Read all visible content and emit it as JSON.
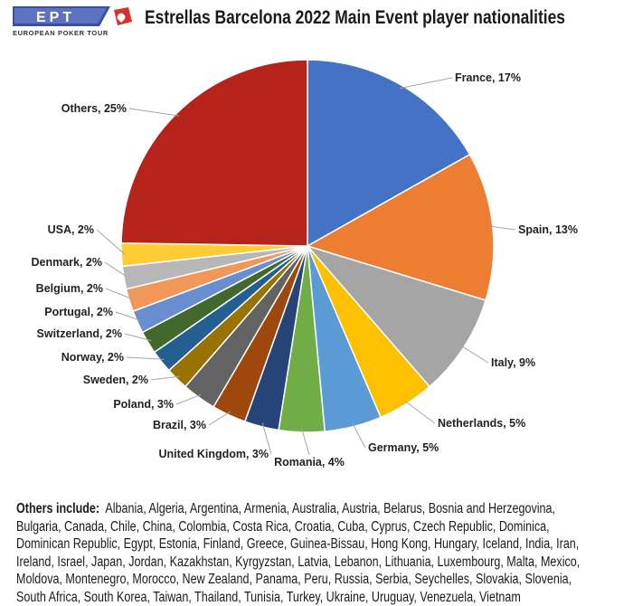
{
  "logo": {
    "text": "EPT",
    "subtitle": "EUROPEAN POKER TOUR"
  },
  "chart_data": {
    "type": "pie",
    "title": "Estrellas Barcelona 2022 Main Event player nationalities",
    "unit": "%",
    "slices": [
      {
        "label": "France",
        "value": 17,
        "color": "#4472C4"
      },
      {
        "label": "Spain",
        "value": 13,
        "color": "#ED7D31"
      },
      {
        "label": "Italy",
        "value": 9,
        "color": "#A5A5A5"
      },
      {
        "label": "Netherlands",
        "value": 5,
        "color": "#FFC000"
      },
      {
        "label": "Germany",
        "value": 5,
        "color": "#5B9BD5"
      },
      {
        "label": "Romania",
        "value": 4,
        "color": "#70AD47"
      },
      {
        "label": "United Kingdom",
        "value": 3,
        "color": "#264478"
      },
      {
        "label": "Brazil",
        "value": 3,
        "color": "#9E480E"
      },
      {
        "label": "Poland",
        "value": 3,
        "color": "#636363"
      },
      {
        "label": "Sweden",
        "value": 2,
        "color": "#997300"
      },
      {
        "label": "Norway",
        "value": 2,
        "color": "#255E91"
      },
      {
        "label": "Switzerland",
        "value": 2,
        "color": "#43682B"
      },
      {
        "label": "Portugal",
        "value": 2,
        "color": "#698ED0"
      },
      {
        "label": "Belgium",
        "value": 2,
        "color": "#F1975A"
      },
      {
        "label": "Denmark",
        "value": 2,
        "color": "#B7B7B7"
      },
      {
        "label": "USA",
        "value": 2,
        "color": "#FFCD33"
      },
      {
        "label": "Others",
        "value": 25,
        "color": "#B5231A"
      }
    ]
  },
  "footnote": {
    "label": "Others include:",
    "lines": [
      "Albania, Algeria, Argentina, Armenia, Australia, Austria, Belarus, Bosnia and Herzegovina,",
      "Bulgaria, Canada, Chile, China, Colombia, Costa Rica, Croatia, Cuba, Cyprus, Czech Republic, Dominica,",
      "Dominican Republic, Egypt, Estonia, Finland, Greece, Guinea-Bissau, Hong Kong, Hungary, Iceland, India, Iran,",
      "Ireland, Israel, Japan, Jordan, Kazakhstan, Kyrgyzstan, Latvia, Lebanon, Lithuania, Luxembourg, Malta, Mexico,",
      "Moldova, Montenegro, Morocco, New Zealand, Panama, Peru, Russia, Serbia, Seychelles, Slovakia, Slovenia,",
      "South Africa, South Korea, Taiwan, Thailand, Tunisia, Turkey, Ukraine, Uruguay, Venezuela, Vietnam"
    ]
  }
}
